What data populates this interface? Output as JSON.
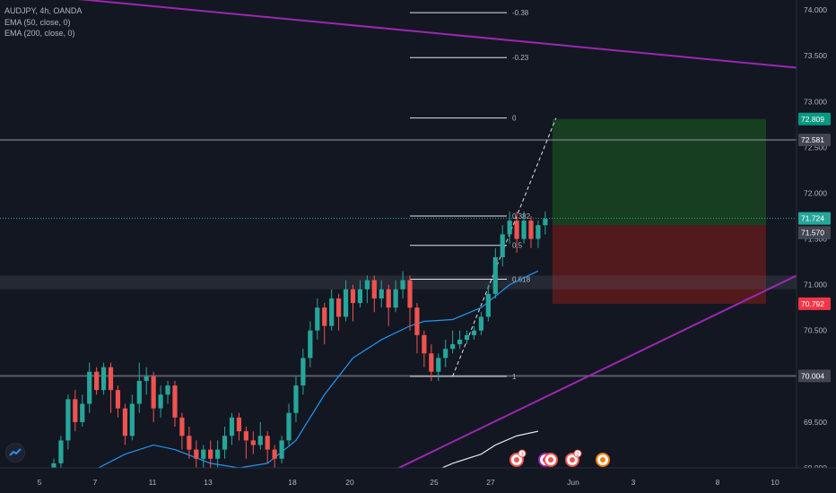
{
  "legend": {
    "symbol": "AUDJPY, 4h, OANDA",
    "ema50": "EMA (50, close, 0)",
    "ema200": "EMA (200, close, 0)"
  },
  "colors": {
    "background": "#131722",
    "up": "#26a69a",
    "down": "#ef5350",
    "ema50": "#2196f3",
    "ema200": "#e0e3eb",
    "trendline": "#9c27b0",
    "profit_zone": "#1b5e20",
    "stop_zone": "#7f1d1d",
    "axis_text": "#b2b5be"
  },
  "chart_data": {
    "type": "candlestick",
    "x_tick_labels": [
      "5",
      "7",
      "11",
      "13",
      "18",
      "20",
      "25",
      "27",
      "Jun",
      "3",
      "8",
      "10"
    ],
    "y_tick_labels": [
      "69.000",
      "69.500",
      "70.000",
      "70.500",
      "71.000",
      "71.500",
      "72.000",
      "72.500",
      "73.000",
      "73.500",
      "74.000"
    ],
    "ylim": [
      69.0,
      74.05
    ],
    "candles": [
      [
        69.0,
        69.05,
        68.9,
        69.1
      ],
      [
        69.05,
        69.3,
        69.0,
        69.35
      ],
      [
        69.3,
        69.75,
        69.2,
        69.8
      ],
      [
        69.75,
        69.5,
        69.4,
        69.85
      ],
      [
        69.5,
        69.7,
        69.45,
        69.8
      ],
      [
        69.7,
        70.05,
        69.6,
        70.15
      ],
      [
        70.05,
        69.85,
        69.8,
        70.1
      ],
      [
        69.85,
        70.1,
        69.8,
        70.15
      ],
      [
        70.1,
        69.85,
        69.6,
        70.15
      ],
      [
        69.85,
        69.65,
        69.55,
        69.9
      ],
      [
        69.65,
        69.35,
        69.25,
        69.7
      ],
      [
        69.35,
        69.7,
        69.3,
        69.8
      ],
      [
        69.7,
        69.95,
        69.6,
        70.15
      ],
      [
        69.95,
        70.0,
        69.8,
        70.1
      ],
      [
        70.0,
        69.65,
        69.5,
        70.05
      ],
      [
        69.65,
        69.8,
        69.55,
        69.9
      ],
      [
        69.8,
        69.9,
        69.7,
        69.95
      ],
      [
        69.9,
        69.55,
        69.45,
        69.95
      ],
      [
        69.55,
        69.35,
        69.2,
        69.6
      ],
      [
        69.35,
        69.2,
        69.1,
        69.45
      ],
      [
        69.2,
        69.1,
        69.0,
        69.3
      ],
      [
        69.1,
        69.2,
        69.0,
        69.25
      ],
      [
        69.2,
        69.1,
        68.98,
        69.3
      ],
      [
        69.1,
        69.2,
        69.0,
        69.3
      ],
      [
        69.2,
        69.35,
        69.1,
        69.45
      ],
      [
        69.35,
        69.55,
        69.25,
        69.6
      ],
      [
        69.55,
        69.4,
        69.3,
        69.6
      ],
      [
        69.4,
        69.3,
        69.1,
        69.45
      ],
      [
        69.3,
        69.25,
        69.15,
        69.4
      ],
      [
        69.25,
        69.35,
        69.2,
        69.5
      ],
      [
        69.35,
        69.2,
        69.05,
        69.4
      ],
      [
        69.2,
        69.1,
        69.0,
        69.25
      ],
      [
        69.1,
        69.3,
        69.05,
        69.35
      ],
      [
        69.3,
        69.6,
        69.25,
        69.7
      ],
      [
        69.6,
        69.9,
        69.5,
        70.0
      ],
      [
        69.9,
        70.2,
        69.8,
        70.3
      ],
      [
        70.2,
        70.5,
        70.1,
        70.6
      ],
      [
        70.5,
        70.75,
        70.4,
        70.85
      ],
      [
        70.75,
        70.55,
        70.35,
        70.8
      ],
      [
        70.55,
        70.85,
        70.5,
        70.95
      ],
      [
        70.85,
        70.65,
        70.5,
        70.9
      ],
      [
        70.65,
        70.95,
        70.6,
        71.05
      ],
      [
        70.95,
        70.8,
        70.6,
        71.0
      ],
      [
        70.8,
        70.95,
        70.75,
        71.05
      ],
      [
        70.95,
        71.05,
        70.8,
        71.1
      ],
      [
        71.05,
        70.85,
        70.7,
        71.1
      ],
      [
        70.85,
        70.95,
        70.75,
        71.05
      ],
      [
        70.95,
        70.75,
        70.55,
        71.0
      ],
      [
        70.75,
        70.95,
        70.7,
        71.05
      ],
      [
        70.95,
        71.05,
        70.85,
        71.15
      ],
      [
        71.05,
        70.75,
        70.5,
        71.1
      ],
      [
        70.75,
        70.45,
        70.25,
        70.8
      ],
      [
        70.45,
        70.25,
        70.1,
        70.5
      ],
      [
        70.25,
        70.05,
        69.95,
        70.35
      ],
      [
        70.05,
        70.2,
        69.95,
        70.25
      ],
      [
        70.2,
        70.3,
        70.1,
        70.4
      ],
      [
        70.3,
        70.35,
        70.25,
        70.5
      ],
      [
        70.35,
        70.4,
        70.3,
        70.5
      ],
      [
        70.4,
        70.45,
        70.35,
        70.5
      ],
      [
        70.45,
        70.5,
        70.4,
        70.55
      ],
      [
        70.5,
        70.65,
        70.45,
        70.7
      ],
      [
        70.65,
        70.9,
        70.6,
        71.0
      ],
      [
        70.9,
        71.3,
        70.85,
        71.4
      ],
      [
        71.3,
        71.55,
        71.2,
        71.65
      ],
      [
        71.55,
        71.7,
        71.45,
        71.8
      ],
      [
        71.7,
        71.5,
        71.35,
        71.8
      ],
      [
        71.5,
        71.7,
        71.45,
        71.8
      ],
      [
        71.7,
        71.5,
        71.4,
        71.75
      ],
      [
        71.5,
        71.65,
        71.4,
        71.7
      ],
      [
        71.65,
        71.72,
        71.55,
        71.8
      ]
    ],
    "ema50": [
      [
        0,
        68.8
      ],
      [
        5,
        68.95
      ],
      [
        10,
        69.15
      ],
      [
        14,
        69.25
      ],
      [
        17,
        69.2
      ],
      [
        22,
        69.05
      ],
      [
        26,
        69.0
      ],
      [
        30,
        69.05
      ],
      [
        34,
        69.3
      ],
      [
        38,
        69.8
      ],
      [
        42,
        70.2
      ],
      [
        46,
        70.4
      ],
      [
        50,
        70.55
      ],
      [
        52,
        70.6
      ],
      [
        56,
        70.62
      ],
      [
        60,
        70.75
      ],
      [
        64,
        71.0
      ],
      [
        68,
        71.15
      ]
    ],
    "ema200": [
      [
        43,
        68.7
      ],
      [
        50,
        68.85
      ],
      [
        56,
        69.05
      ],
      [
        60,
        69.15
      ],
      [
        62,
        69.25
      ],
      [
        65,
        69.35
      ],
      [
        68,
        69.4
      ]
    ],
    "trendlines": [
      {
        "from": [
          0,
          74.2
        ],
        "to": [
          100,
          73.37
        ]
      },
      {
        "from": [
          52,
          68.85
        ],
        "to": [
          100,
          71.1
        ]
      }
    ],
    "horizontal_levels": [
      72.581,
      70.004
    ],
    "fibonacci": {
      "start": [
        56,
        70.0
      ],
      "end": [
        69,
        72.82
      ],
      "levels": [
        {
          "ratio": "-0.38",
          "price": 73.97
        },
        {
          "ratio": "-0.23",
          "price": 73.48
        },
        {
          "ratio": "0",
          "price": 72.82
        },
        {
          "ratio": "0.382",
          "price": 71.75
        },
        {
          "ratio": "0.5",
          "price": 71.43
        },
        {
          "ratio": "0.618",
          "price": 71.06
        },
        {
          "ratio": "1",
          "price": 70.0
        }
      ]
    },
    "position": {
      "entry": 71.65,
      "target": 72.809,
      "stop": 70.792,
      "from_index": 70,
      "to_index": 100
    },
    "current_price": 71.724,
    "price_tags": [
      {
        "label": "72.809",
        "price": 72.809,
        "kind": "target"
      },
      {
        "label": "72.581",
        "price": 72.581,
        "kind": "level"
      },
      {
        "label": "71.724",
        "price": 71.724,
        "kind": "current"
      },
      {
        "label": "03:32:28",
        "price": 71.724,
        "kind": "countdown"
      },
      {
        "label": "71.570",
        "price": 71.57,
        "kind": "level"
      },
      {
        "label": "70.792",
        "price": 70.792,
        "kind": "stop"
      },
      {
        "label": "70.004",
        "price": 70.004,
        "kind": "level"
      }
    ],
    "event_markers": [
      "3",
      "",
      "",
      "2",
      ""
    ]
  }
}
